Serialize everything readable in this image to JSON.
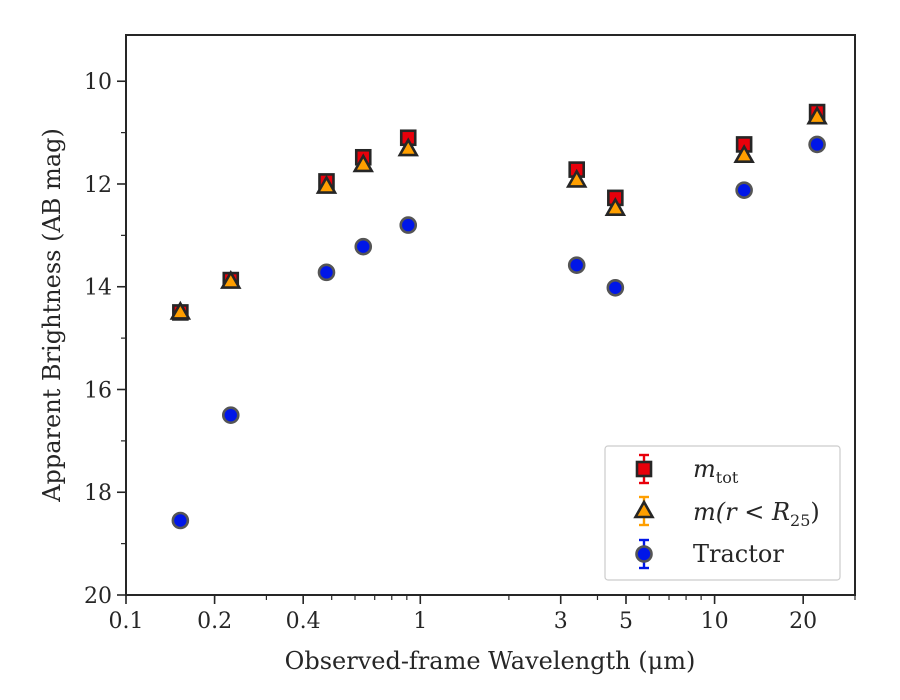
{
  "chart_data": {
    "type": "scatter",
    "xlabel": "Observed-frame Wavelength (μm)",
    "ylabel": "Apparent Brightness (AB mag)",
    "xscale": "log",
    "xlim": [
      0.1,
      30
    ],
    "ylim": [
      20,
      9.1
    ],
    "y_inverted": true,
    "grid": false,
    "legend_position": "lower-right",
    "x_tick_labels": [
      "0.1",
      "0.2",
      "0.4",
      "1",
      "3",
      "5",
      "10",
      "20"
    ],
    "x_tick_values": [
      0.1,
      0.2,
      0.4,
      1,
      3,
      5,
      10,
      20
    ],
    "y_tick_labels": [
      "10",
      "12",
      "14",
      "16",
      "18",
      "20"
    ],
    "y_tick_values": [
      10,
      12,
      14,
      16,
      18,
      20
    ],
    "series": [
      {
        "name_main": "m",
        "name_sub": "tot",
        "marker": "square",
        "color": "#e8000b",
        "x": [
          0.153,
          0.227,
          0.48,
          0.64,
          0.91,
          3.4,
          4.6,
          12.6,
          22.3
        ],
        "y": [
          14.5,
          13.87,
          11.95,
          11.48,
          11.1,
          11.72,
          12.27,
          11.23,
          10.6
        ]
      },
      {
        "name_main": "m(r < R",
        "name_sub": "25",
        "name_end": ")",
        "marker": "triangle",
        "color": "#ff9f00",
        "x": [
          0.153,
          0.227,
          0.48,
          0.64,
          0.91,
          3.4,
          4.6,
          12.6,
          22.3
        ],
        "y": [
          14.5,
          13.9,
          12.05,
          11.63,
          11.32,
          11.93,
          12.48,
          11.45,
          10.7
        ]
      },
      {
        "name": "Tractor",
        "marker": "circle",
        "color": "#0016e8",
        "x": [
          0.153,
          0.227,
          0.48,
          0.64,
          0.91,
          3.4,
          4.6,
          12.6,
          22.3
        ],
        "y": [
          18.55,
          16.5,
          13.72,
          13.22,
          12.8,
          13.58,
          14.02,
          12.12,
          11.23
        ]
      }
    ]
  }
}
